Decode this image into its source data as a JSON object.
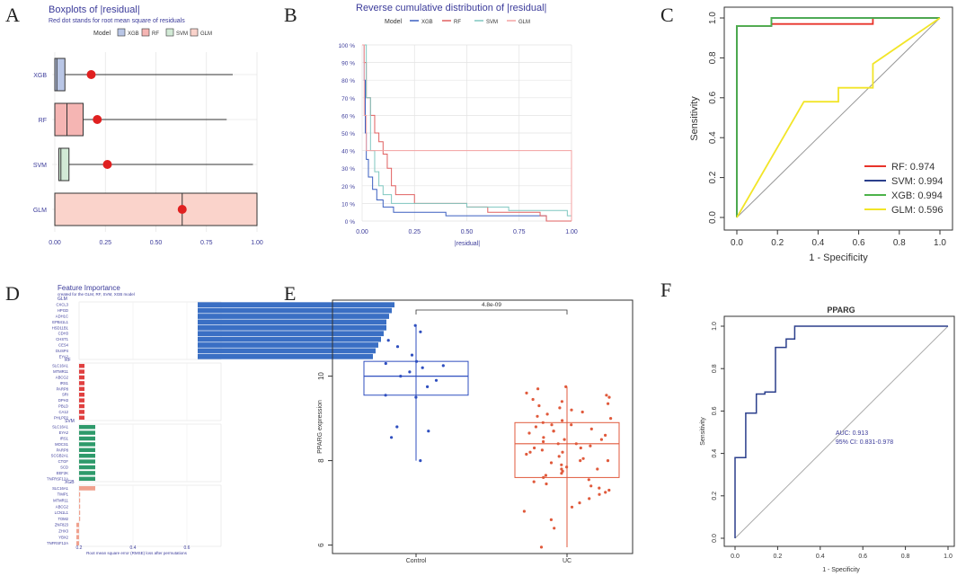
{
  "panel_letters": [
    "A",
    "B",
    "C",
    "D",
    "E",
    "F"
  ],
  "chart_data": [
    {
      "panel": "A",
      "type": "boxplot",
      "title": "Boxplots of |residual|",
      "subtitle": "Red dot stands for root mean square of residuals",
      "legend_title": "Model",
      "legend": [
        "XGB",
        "RF",
        "SVM",
        "GLM"
      ],
      "categories": [
        "XGB",
        "RF",
        "SVM",
        "GLM"
      ],
      "xlim": [
        0,
        1
      ],
      "xticks": [
        "0.00",
        "0.25",
        "0.50",
        "0.75",
        "1.00"
      ],
      "boxes": [
        {
          "name": "XGB",
          "q1": 0.0,
          "median": 0.01,
          "q3": 0.05,
          "whisker_max": 0.88,
          "rmse": 0.18,
          "color": "#b9c6e6"
        },
        {
          "name": "RF",
          "q1": 0.0,
          "median": 0.06,
          "q3": 0.14,
          "whisker_max": 0.85,
          "rmse": 0.21,
          "color": "#f5b5b3"
        },
        {
          "name": "SVM",
          "q1": 0.02,
          "median": 0.03,
          "q3": 0.07,
          "whisker_max": 0.98,
          "rmse": 0.26,
          "color": "#d2ead6"
        },
        {
          "name": "GLM",
          "q1": 0.0,
          "median": 0.63,
          "q3": 1.0,
          "whisker_max": 1.0,
          "rmse": 0.63,
          "color": "#fad3cb"
        }
      ]
    },
    {
      "panel": "B",
      "type": "line",
      "title": "Reverse cumulative distribution of |residual|",
      "legend_title": "Model",
      "xlabel": "|residual|",
      "xlim": [
        0,
        1
      ],
      "ylim": [
        0,
        100
      ],
      "xticks": [
        "0.00",
        "0.25",
        "0.50",
        "0.75",
        "1.00"
      ],
      "yticks": [
        "0 %",
        "10 %",
        "20 %",
        "30 %",
        "40 %",
        "50 %",
        "60 %",
        "70 %",
        "80 %",
        "90 %",
        "100 %"
      ],
      "series": [
        {
          "name": "XGB",
          "color": "#3b5fc0",
          "points": [
            [
              0,
              100
            ],
            [
              0.01,
              80
            ],
            [
              0.015,
              50
            ],
            [
              0.02,
              35
            ],
            [
              0.03,
              25
            ],
            [
              0.05,
              18
            ],
            [
              0.07,
              12
            ],
            [
              0.1,
              8
            ],
            [
              0.15,
              5
            ],
            [
              0.3,
              5
            ],
            [
              0.4,
              3
            ],
            [
              0.88,
              3
            ],
            [
              0.88,
              0
            ],
            [
              1,
              0
            ]
          ]
        },
        {
          "name": "RF",
          "color": "#e06060",
          "points": [
            [
              0,
              100
            ],
            [
              0.01,
              90
            ],
            [
              0.02,
              70
            ],
            [
              0.04,
              60
            ],
            [
              0.06,
              50
            ],
            [
              0.08,
              45
            ],
            [
              0.1,
              38
            ],
            [
              0.12,
              30
            ],
            [
              0.14,
              20
            ],
            [
              0.16,
              15
            ],
            [
              0.25,
              10
            ],
            [
              0.5,
              8
            ],
            [
              0.6,
              5
            ],
            [
              0.85,
              3
            ],
            [
              0.88,
              0
            ],
            [
              1,
              0
            ]
          ]
        },
        {
          "name": "SVM",
          "color": "#7fc7c0",
          "points": [
            [
              0,
              100
            ],
            [
              0.02,
              70
            ],
            [
              0.04,
              40
            ],
            [
              0.06,
              28
            ],
            [
              0.08,
              20
            ],
            [
              0.1,
              15
            ],
            [
              0.14,
              10
            ],
            [
              0.5,
              8
            ],
            [
              0.7,
              6
            ],
            [
              0.98,
              3
            ],
            [
              1,
              0
            ]
          ]
        },
        {
          "name": "GLM",
          "color": "#f4a2a2",
          "points": [
            [
              0,
              100
            ],
            [
              0.01,
              60
            ],
            [
              0.02,
              40
            ],
            [
              0.99,
              40
            ],
            [
              1,
              0
            ]
          ]
        }
      ]
    },
    {
      "panel": "C",
      "type": "line",
      "subtype": "roc",
      "xlabel": "1 - Specificity",
      "ylabel": "Sensitivity",
      "xlim": [
        0,
        1
      ],
      "ylim": [
        0,
        1
      ],
      "xticks": [
        "0.0",
        "0.2",
        "0.4",
        "0.6",
        "0.8",
        "1.0"
      ],
      "yticks": [
        "0.0",
        "0.2",
        "0.4",
        "0.6",
        "0.8",
        "1.0"
      ],
      "legend": [
        "RF: 0.974",
        "SVM: 0.994",
        "XGB: 0.994",
        "GLM: 0.596"
      ],
      "series": [
        {
          "name": "RF: 0.974",
          "color": "#e8332a",
          "points": [
            [
              0,
              0
            ],
            [
              0,
              0.96
            ],
            [
              0.17,
              0.96
            ],
            [
              0.17,
              0.97
            ],
            [
              0.67,
              0.97
            ],
            [
              0.67,
              1
            ],
            [
              1,
              1
            ]
          ]
        },
        {
          "name": "SVM: 0.994",
          "color": "#2b3f8c",
          "points": [
            [
              0,
              0
            ],
            [
              0,
              0.96
            ],
            [
              0.17,
              0.96
            ],
            [
              0.17,
              1
            ],
            [
              1,
              1
            ]
          ]
        },
        {
          "name": "XGB: 0.994",
          "color": "#4cb34a",
          "points": [
            [
              0,
              0
            ],
            [
              0,
              0.96
            ],
            [
              0.17,
              0.96
            ],
            [
              0.17,
              1
            ],
            [
              1,
              1
            ]
          ]
        },
        {
          "name": "GLM: 0.596",
          "color": "#f2e528",
          "points": [
            [
              0,
              0
            ],
            [
              0.33,
              0.58
            ],
            [
              0.5,
              0.58
            ],
            [
              0.5,
              0.65
            ],
            [
              0.67,
              0.65
            ],
            [
              0.67,
              0.77
            ],
            [
              1,
              1
            ]
          ]
        }
      ]
    },
    {
      "panel": "D",
      "type": "bar",
      "title": "Feature Importance",
      "subtitle": "created for the GLM, RF, SVM, XGB model",
      "xlabel": "Root mean square error (RMSE) loss after permutations",
      "xticks": [
        "0.2",
        "0.4",
        "0.6"
      ],
      "groups": [
        {
          "name": "GLM",
          "color": "#3a6fc4",
          "features": [
            "CXCL3",
            "HPGD",
            "ADH1C",
            "EPB41L1",
            "HSD11B1",
            "CDH3",
            "CHST1",
            "CES4",
            "DUSP4",
            "EYA2"
          ],
          "values": [
            0.93,
            0.92,
            0.91,
            0.9,
            0.9,
            0.89,
            0.88,
            0.87,
            0.86,
            0.85
          ]
        },
        {
          "name": "RF",
          "color": "#e04040",
          "features": [
            "SLC16A1",
            "MTMR11",
            "ABCG2",
            "IRS1",
            "PARP8",
            "SRI",
            "DPH3",
            "PBLD",
            "CA12",
            "PHLPP2"
          ],
          "values": [
            0.22,
            0.22,
            0.22,
            0.22,
            0.22,
            0.22,
            0.22,
            0.22,
            0.22,
            0.22
          ]
        },
        {
          "name": "SVM",
          "color": "#2e9a6b",
          "features": [
            "SLC16A1",
            "EYA2",
            "IRS1",
            "MOCS1",
            "PARP8",
            "SCGB2A1",
            "CTGF",
            "SCD",
            "EEF2K",
            "TNFRSF12A"
          ],
          "values": [
            0.26,
            0.26,
            0.26,
            0.26,
            0.26,
            0.26,
            0.26,
            0.26,
            0.26,
            0.26
          ]
        },
        {
          "name": "XGB",
          "color": "#f0a18e",
          "features": [
            "SLC16A1",
            "TIMP1",
            "MTMR11",
            "ABCG2",
            "LCN1L1",
            "TOM2",
            "ZNF823",
            "ZHX3",
            "YBX2",
            "TNFRSF12A"
          ],
          "values": [
            0.26,
            0.2,
            0.2,
            0.2,
            0.2,
            0.2,
            0.19,
            0.19,
            0.19,
            0.19
          ]
        }
      ]
    },
    {
      "panel": "E",
      "type": "boxplot",
      "subtype": "jitter",
      "ylabel": "PPARG expression",
      "categories": [
        "Control",
        "UC"
      ],
      "ylim": [
        5.8,
        11.8
      ],
      "yticks": [
        "6",
        "8",
        "10"
      ],
      "pvalue": "4.8e-09",
      "boxes": [
        {
          "name": "Control",
          "min": 8.0,
          "q1": 9.55,
          "median": 10.0,
          "q3": 10.35,
          "max": 11.2,
          "color": "#2f4fbf"
        },
        {
          "name": "UC",
          "min": 5.95,
          "q1": 7.6,
          "median": 8.4,
          "q3": 8.9,
          "max": 9.75,
          "color": "#e05a3c"
        }
      ],
      "points": {
        "Control": [
          11.2,
          11.05,
          10.85,
          10.7,
          10.5,
          10.35,
          10.3,
          10.25,
          10.2,
          10.1,
          10.0,
          9.9,
          9.75,
          9.55,
          9.5,
          8.8,
          8.7,
          8.55,
          8.0
        ],
        "UC": [
          9.75,
          9.7,
          9.6,
          9.55,
          9.5,
          9.45,
          9.4,
          9.35,
          9.3,
          9.25,
          9.2,
          9.15,
          9.1,
          9.05,
          9.0,
          8.95,
          8.9,
          8.85,
          8.85,
          8.8,
          8.75,
          8.7,
          8.7,
          8.65,
          8.6,
          8.55,
          8.5,
          8.5,
          8.45,
          8.4,
          8.4,
          8.35,
          8.3,
          8.3,
          8.25,
          8.2,
          8.2,
          8.15,
          8.1,
          8.05,
          8.0,
          8.0,
          7.95,
          7.9,
          7.85,
          7.8,
          7.8,
          7.75,
          7.7,
          7.65,
          7.6,
          7.55,
          7.5,
          7.45,
          7.4,
          7.35,
          7.3,
          7.25,
          7.2,
          7.1,
          7.0,
          6.9,
          6.8,
          6.6,
          6.4,
          5.95
        ]
      }
    },
    {
      "panel": "F",
      "type": "line",
      "subtype": "roc",
      "title": "PPARG",
      "xlabel": "1 - Specificity",
      "ylabel": "Sensitivity",
      "xlim": [
        0,
        1
      ],
      "ylim": [
        0,
        1
      ],
      "xticks": [
        "0.0",
        "0.2",
        "0.4",
        "0.6",
        "0.8",
        "1.0"
      ],
      "yticks": [
        "0.0",
        "0.2",
        "0.4",
        "0.6",
        "0.8",
        "1.0"
      ],
      "annotations": [
        "AUC: 0.913",
        "95% CI: 0.831-0.978"
      ],
      "color": "#2b3f8c",
      "points": [
        [
          0,
          0
        ],
        [
          0,
          0.38
        ],
        [
          0.05,
          0.38
        ],
        [
          0.05,
          0.59
        ],
        [
          0.1,
          0.59
        ],
        [
          0.1,
          0.68
        ],
        [
          0.14,
          0.68
        ],
        [
          0.14,
          0.69
        ],
        [
          0.19,
          0.69
        ],
        [
          0.19,
          0.9
        ],
        [
          0.24,
          0.9
        ],
        [
          0.24,
          0.94
        ],
        [
          0.28,
          0.94
        ],
        [
          0.28,
          1
        ],
        [
          1,
          1
        ]
      ]
    }
  ]
}
